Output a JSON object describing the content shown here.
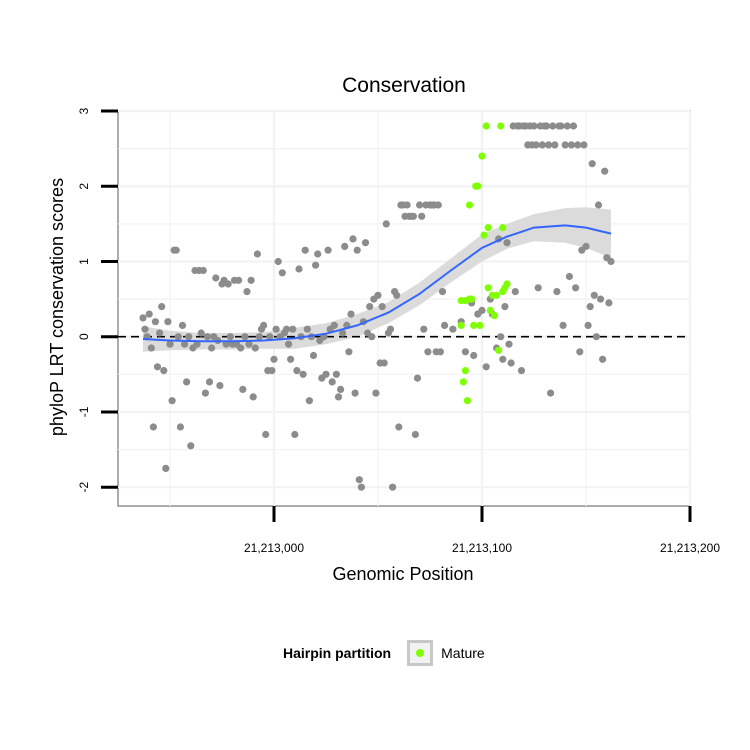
{
  "chart_data": {
    "type": "scatter",
    "title": "Conservation",
    "xlabel": "Genomic Position",
    "ylabel": "phyloP LRT conservation scores",
    "xlim": [
      21212925,
      21213200
    ],
    "ylim": [
      -2.25,
      3
    ],
    "x_ticks": [
      21213000,
      21213100,
      21213200
    ],
    "x_tick_labels": [
      "21,213,000",
      "21,213,100",
      "21,213,200"
    ],
    "y_ticks": [
      -2,
      -1,
      0,
      1,
      2,
      3
    ],
    "y_tick_labels": [
      "-2",
      "-1",
      "0",
      "1",
      "2",
      "3"
    ],
    "grid": true,
    "reference_line": {
      "y": 0,
      "style": "dashed"
    },
    "colors": {
      "other": "#8c8c8c",
      "mature": "#7fff00",
      "smooth": "#3366ff",
      "band": "#d9d9d9"
    },
    "legend": {
      "title": "Hairpin partition",
      "placement": "bottom",
      "entries": [
        {
          "label": "Mature",
          "color": "#7fff00"
        }
      ]
    },
    "series": [
      {
        "points": [
          [
            21212937,
            0.25
          ],
          [
            21212938,
            0.1
          ],
          [
            21212939,
            0.0
          ],
          [
            21212940,
            0.3
          ],
          [
            21212941,
            -0.15
          ],
          [
            21212942,
            -1.2
          ],
          [
            21212943,
            0.2
          ],
          [
            21212944,
            -0.4
          ],
          [
            21212945,
            0.05
          ],
          [
            21212946,
            0.4
          ],
          [
            21212947,
            -0.45
          ],
          [
            21212948,
            -1.75
          ],
          [
            21212949,
            0.2
          ],
          [
            21212950,
            -0.1
          ],
          [
            21212951,
            -0.85
          ],
          [
            21212952,
            1.15
          ],
          [
            21212953,
            1.15
          ],
          [
            21212954,
            0.0
          ],
          [
            21212955,
            -1.2
          ],
          [
            21212956,
            0.15
          ],
          [
            21212957,
            -0.1
          ],
          [
            21212958,
            -0.6
          ],
          [
            21212959,
            0.0
          ],
          [
            21212960,
            -1.45
          ],
          [
            21212961,
            -0.15
          ],
          [
            21212962,
            0.88
          ],
          [
            21212963,
            -0.1
          ],
          [
            21212964,
            0.88
          ],
          [
            21212965,
            0.05
          ],
          [
            21212966,
            0.88
          ],
          [
            21212967,
            -0.75
          ],
          [
            21212968,
            0.0
          ],
          [
            21212969,
            -0.6
          ],
          [
            21212970,
            -0.15
          ],
          [
            21212971,
            0.0
          ],
          [
            21212972,
            0.78
          ],
          [
            21212973,
            -0.05
          ],
          [
            21212974,
            -0.65
          ],
          [
            21212975,
            0.7
          ],
          [
            21212976,
            0.75
          ],
          [
            21212977,
            -0.1
          ],
          [
            21212978,
            0.7
          ],
          [
            21212979,
            0.0
          ],
          [
            21212980,
            -0.1
          ],
          [
            21212981,
            0.75
          ],
          [
            21212982,
            -0.1
          ],
          [
            21212983,
            0.75
          ],
          [
            21212984,
            -0.15
          ],
          [
            21212985,
            -0.7
          ],
          [
            21212986,
            0.0
          ],
          [
            21212987,
            0.6
          ],
          [
            21212988,
            -0.1
          ],
          [
            21212989,
            0.75
          ],
          [
            21212990,
            -0.8
          ],
          [
            21212991,
            -0.15
          ],
          [
            21212992,
            1.1
          ],
          [
            21212993,
            0.0
          ],
          [
            21212994,
            0.1
          ],
          [
            21212995,
            0.15
          ],
          [
            21212996,
            -1.3
          ],
          [
            21212997,
            -0.45
          ],
          [
            21212998,
            0.0
          ],
          [
            21212999,
            -0.45
          ],
          [
            21213000,
            -0.3
          ],
          [
            21213001,
            0.1
          ],
          [
            21213002,
            1.0
          ],
          [
            21213003,
            0.0
          ],
          [
            21213004,
            0.85
          ],
          [
            21213005,
            0.05
          ],
          [
            21213006,
            0.1
          ],
          [
            21213007,
            -0.1
          ],
          [
            21213008,
            -0.3
          ],
          [
            21213009,
            0.1
          ],
          [
            21213010,
            -1.3
          ],
          [
            21213011,
            -0.45
          ],
          [
            21213012,
            0.9
          ],
          [
            21213013,
            0.0
          ],
          [
            21213014,
            -0.5
          ],
          [
            21213015,
            1.15
          ],
          [
            21213016,
            0.1
          ],
          [
            21213017,
            -0.85
          ],
          [
            21213018,
            0.0
          ],
          [
            21213019,
            -0.25
          ],
          [
            21213020,
            0.95
          ],
          [
            21213021,
            1.1
          ],
          [
            21213022,
            -0.05
          ],
          [
            21213023,
            -0.55
          ],
          [
            21213024,
            0.0
          ],
          [
            21213025,
            -0.5
          ],
          [
            21213026,
            1.15
          ],
          [
            21213027,
            0.1
          ],
          [
            21213028,
            -0.6
          ],
          [
            21213029,
            0.15
          ],
          [
            21213030,
            -0.5
          ],
          [
            21213031,
            -0.8
          ],
          [
            21213032,
            -0.7
          ],
          [
            21213033,
            0.05
          ],
          [
            21213034,
            1.2
          ],
          [
            21213035,
            0.15
          ],
          [
            21213036,
            -0.2
          ],
          [
            21213037,
            0.3
          ],
          [
            21213038,
            1.3
          ],
          [
            21213039,
            -0.75
          ],
          [
            21213040,
            1.15
          ],
          [
            21213041,
            -1.9
          ],
          [
            21213042,
            -2.0
          ],
          [
            21213043,
            0.2
          ],
          [
            21213044,
            1.25
          ],
          [
            21213045,
            0.05
          ],
          [
            21213046,
            0.4
          ],
          [
            21213047,
            0.0
          ],
          [
            21213048,
            0.5
          ],
          [
            21213049,
            -0.75
          ],
          [
            21213050,
            0.55
          ],
          [
            21213051,
            -0.35
          ],
          [
            21213052,
            0.4
          ],
          [
            21213053,
            -0.35
          ],
          [
            21213054,
            1.5
          ],
          [
            21213055,
            0.05
          ],
          [
            21213056,
            0.1
          ],
          [
            21213057,
            -2.0
          ],
          [
            21213058,
            0.6
          ],
          [
            21213059,
            0.55
          ],
          [
            21213060,
            -1.2
          ],
          [
            21213061,
            1.75
          ],
          [
            21213062,
            1.75
          ],
          [
            21213063,
            1.6
          ],
          [
            21213064,
            1.75
          ],
          [
            21213065,
            1.6
          ],
          [
            21213066,
            1.6
          ],
          [
            21213067,
            1.6
          ],
          [
            21213068,
            -1.3
          ],
          [
            21213069,
            -0.55
          ],
          [
            21213070,
            1.75
          ],
          [
            21213071,
            1.6
          ],
          [
            21213072,
            0.1
          ],
          [
            21213073,
            1.75
          ],
          [
            21213074,
            -0.2
          ],
          [
            21213075,
            1.75
          ],
          [
            21213076,
            1.75
          ],
          [
            21213077,
            1.75
          ],
          [
            21213078,
            -0.2
          ],
          [
            21213079,
            1.75
          ],
          [
            21213080,
            -0.2
          ],
          [
            21213081,
            0.6
          ],
          [
            21213082,
            0.15
          ],
          [
            21213086,
            0.1
          ],
          [
            21213090,
            0.2
          ],
          [
            21213092,
            -0.2
          ],
          [
            21213095,
            0.45
          ],
          [
            21213096,
            -0.25
          ],
          [
            21213098,
            0.3
          ],
          [
            21213100,
            0.35
          ],
          [
            21213102,
            -0.4
          ],
          [
            21213104,
            0.5
          ],
          [
            21213105,
            0.3
          ],
          [
            21213107,
            -0.15
          ],
          [
            21213108,
            1.3
          ],
          [
            21213109,
            0.0
          ],
          [
            21213110,
            -0.3
          ],
          [
            21213111,
            0.4
          ],
          [
            21213112,
            1.25
          ],
          [
            21213113,
            -0.1
          ],
          [
            21213114,
            -0.35
          ],
          [
            21213115,
            2.8
          ],
          [
            21213116,
            0.6
          ],
          [
            21213117,
            2.8
          ],
          [
            21213118,
            2.8
          ],
          [
            21213119,
            -0.45
          ],
          [
            21213120,
            2.8
          ],
          [
            21213121,
            2.8
          ],
          [
            21213122,
            2.55
          ],
          [
            21213123,
            2.8
          ],
          [
            21213124,
            2.55
          ],
          [
            21213125,
            2.8
          ],
          [
            21213126,
            2.55
          ],
          [
            21213127,
            0.65
          ],
          [
            21213128,
            2.8
          ],
          [
            21213129,
            2.55
          ],
          [
            21213130,
            2.8
          ],
          [
            21213131,
            2.8
          ],
          [
            21213132,
            2.55
          ],
          [
            21213133,
            -0.75
          ],
          [
            21213134,
            2.8
          ],
          [
            21213135,
            2.55
          ],
          [
            21213136,
            0.6
          ],
          [
            21213137,
            2.8
          ],
          [
            21213138,
            2.8
          ],
          [
            21213139,
            0.15
          ],
          [
            21213140,
            2.55
          ],
          [
            21213141,
            2.8
          ],
          [
            21213142,
            0.8
          ],
          [
            21213143,
            2.55
          ],
          [
            21213144,
            2.8
          ],
          [
            21213145,
            0.65
          ],
          [
            21213146,
            2.55
          ],
          [
            21213147,
            -0.2
          ],
          [
            21213148,
            1.15
          ],
          [
            21213149,
            2.55
          ],
          [
            21213150,
            1.2
          ],
          [
            21213151,
            0.15
          ],
          [
            21213152,
            0.4
          ],
          [
            21213153,
            2.3
          ],
          [
            21213154,
            0.55
          ],
          [
            21213155,
            0.0
          ],
          [
            21213156,
            1.75
          ],
          [
            21213157,
            0.5
          ],
          [
            21213158,
            -0.3
          ],
          [
            21213159,
            2.2
          ],
          [
            21213160,
            1.05
          ],
          [
            21213161,
            0.45
          ],
          [
            21213162,
            1.0
          ]
        ],
        "color": "#8c8c8c"
      },
      {
        "name": "Mature",
        "points": [
          [
            21213090,
            0.15
          ],
          [
            21213090,
            0.48
          ],
          [
            21213091,
            -0.6
          ],
          [
            21213092,
            0.48
          ],
          [
            21213092,
            -0.45
          ],
          [
            21213093,
            -0.85
          ],
          [
            21213094,
            1.75
          ],
          [
            21213094,
            0.5
          ],
          [
            21213095,
            0.5
          ],
          [
            21213096,
            0.15
          ],
          [
            21213097,
            2.0
          ],
          [
            21213098,
            2.0
          ],
          [
            21213099,
            0.15
          ],
          [
            21213100,
            2.4
          ],
          [
            21213101,
            1.35
          ],
          [
            21213102,
            2.8
          ],
          [
            21213103,
            1.45
          ],
          [
            21213103,
            0.65
          ],
          [
            21213104,
            0.35
          ],
          [
            21213105,
            0.55
          ],
          [
            21213106,
            0.28
          ],
          [
            21213107,
            0.55
          ],
          [
            21213108,
            -0.18
          ],
          [
            21213109,
            2.8
          ],
          [
            21213110,
            1.45
          ],
          [
            21213110,
            0.6
          ],
          [
            21213111,
            0.65
          ],
          [
            21213112,
            0.7
          ]
        ],
        "color": "#7fff00"
      }
    ],
    "smooth": {
      "x": [
        21212937,
        21212950,
        21212965,
        21212980,
        21212995,
        21213010,
        21213025,
        21213040,
        21213055,
        21213070,
        21213085,
        21213100,
        21213112,
        21213125,
        21213140,
        21213150,
        21213162
      ],
      "y": [
        -0.03,
        -0.05,
        -0.06,
        -0.06,
        -0.05,
        -0.02,
        0.04,
        0.15,
        0.32,
        0.57,
        0.88,
        1.18,
        1.33,
        1.45,
        1.48,
        1.45,
        1.37
      ],
      "lower": [
        -0.2,
        -0.18,
        -0.17,
        -0.17,
        -0.16,
        -0.16,
        -0.1,
        0.0,
        0.18,
        0.42,
        0.72,
        1.0,
        1.17,
        1.27,
        1.25,
        1.18,
        1.05
      ],
      "upper": [
        0.14,
        0.08,
        0.05,
        0.05,
        0.06,
        0.12,
        0.18,
        0.3,
        0.46,
        0.72,
        1.04,
        1.36,
        1.5,
        1.63,
        1.71,
        1.72,
        1.69
      ]
    }
  }
}
